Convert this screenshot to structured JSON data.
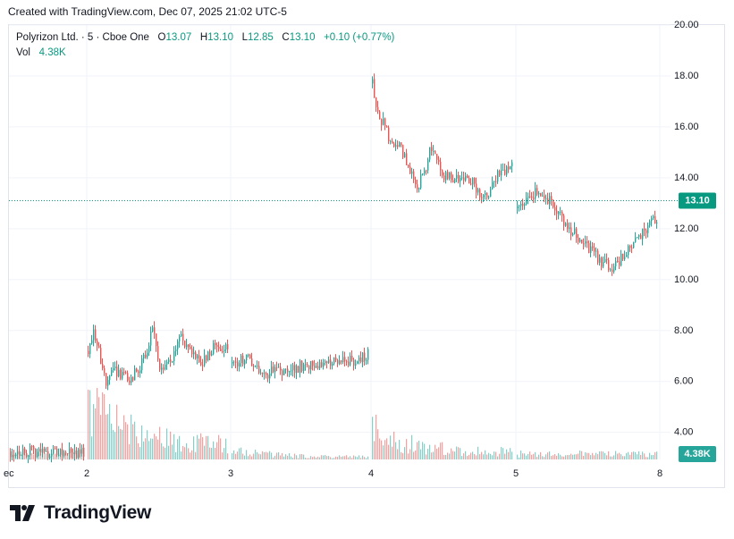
{
  "header": {
    "created_text": "Created with TradingView.com, Dec 07, 2025 21:02 UTC-5"
  },
  "legend": {
    "symbol": "Polyrizon Ltd. · 5 · Cboe One",
    "o_label": "O",
    "o_value": "13.07",
    "h_label": "H",
    "h_value": "13.10",
    "l_label": "L",
    "l_value": "12.85",
    "c_label": "C",
    "c_value": "13.10",
    "change": "+0.10 (+0.77%)",
    "vol_label": "Vol",
    "vol_value": "4.38K"
  },
  "brand": {
    "name": "TradingView"
  },
  "colors": {
    "up": "#26a69a",
    "down": "#ef5350",
    "last_price": "#089981",
    "grid": "#f0f3fa",
    "axis_text": "#131722"
  },
  "chart_data": {
    "type": "candlestick",
    "title": "Polyrizon Ltd. · 5 · Cboe One",
    "x_tick_labels": [
      "ec",
      "2",
      "3",
      "4",
      "5",
      "8"
    ],
    "y_tick_labels": [
      "20.00",
      "18.00",
      "16.00",
      "14.00",
      "12.00",
      "10.00",
      "8.00",
      "6.00",
      "4.00"
    ],
    "ylim": [
      2.9,
      20.0
    ],
    "last_price": "13.10",
    "last_volume": "4.38K",
    "sessions": [
      {
        "day": "ec",
        "path": [
          [
            0,
            3.25
          ],
          [
            1,
            3.2
          ]
        ],
        "volume_level": 0.05
      },
      {
        "day": "2",
        "path": [
          [
            0,
            7.2
          ],
          [
            0.04,
            8.1
          ],
          [
            0.12,
            6.0
          ],
          [
            0.2,
            6.4
          ],
          [
            0.3,
            6.1
          ],
          [
            0.42,
            7.0
          ],
          [
            0.46,
            8.2
          ],
          [
            0.52,
            6.4
          ],
          [
            0.6,
            6.8
          ],
          [
            0.66,
            8.0
          ],
          [
            0.72,
            7.2
          ],
          [
            0.8,
            6.7
          ],
          [
            0.9,
            7.3
          ],
          [
            1,
            7.3
          ]
        ],
        "volume_level": 0.6
      },
      {
        "day": "3",
        "path": [
          [
            0,
            6.7
          ],
          [
            0.12,
            6.9
          ],
          [
            0.22,
            6.2
          ],
          [
            0.32,
            6.5
          ],
          [
            0.42,
            6.35
          ],
          [
            0.5,
            6.6
          ],
          [
            0.62,
            6.7
          ],
          [
            0.75,
            6.85
          ],
          [
            0.88,
            6.8
          ],
          [
            0.95,
            6.9
          ],
          [
            1,
            7.1
          ]
        ],
        "volume_level": 0.1
      },
      {
        "day": "4",
        "path": [
          [
            0,
            17.7
          ],
          [
            0.04,
            16.6
          ],
          [
            0.12,
            15.6
          ],
          [
            0.2,
            15.2
          ],
          [
            0.26,
            14.4
          ],
          [
            0.32,
            13.6
          ],
          [
            0.38,
            14.4
          ],
          [
            0.42,
            15.2
          ],
          [
            0.5,
            14.1
          ],
          [
            0.6,
            14.0
          ],
          [
            0.72,
            13.8
          ],
          [
            0.8,
            13.1
          ],
          [
            0.88,
            14.0
          ],
          [
            0.96,
            14.3
          ],
          [
            1,
            14.5
          ]
        ],
        "volume_level": 0.3
      },
      {
        "day": "5",
        "path": [
          [
            0,
            12.8
          ],
          [
            0.06,
            13.1
          ],
          [
            0.14,
            13.5
          ],
          [
            0.2,
            13.3
          ],
          [
            0.28,
            12.7
          ],
          [
            0.36,
            12.1
          ],
          [
            0.44,
            11.6
          ],
          [
            0.54,
            11.1
          ],
          [
            0.6,
            10.7
          ],
          [
            0.68,
            10.5
          ],
          [
            0.76,
            10.9
          ],
          [
            0.84,
            11.4
          ],
          [
            0.92,
            12.0
          ],
          [
            1,
            12.4
          ]
        ],
        "volume_level": 0.05
      },
      {
        "day": "8",
        "path": [
          [
            0,
            12.5
          ],
          [
            0.3,
            12.7
          ],
          [
            0.6,
            13.0
          ],
          [
            1,
            13.1
          ]
        ],
        "volume_level": 0.05
      }
    ]
  }
}
